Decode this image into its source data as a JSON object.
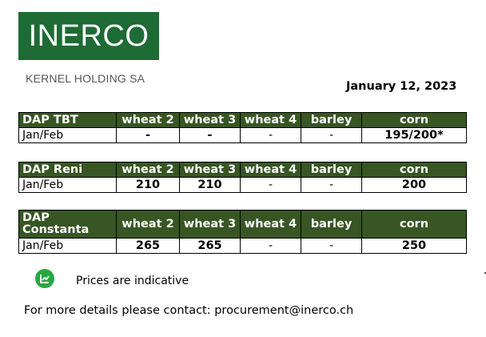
{
  "header": {
    "logo_text": "INERCO",
    "company_name": "KERNEL HOLDING SA",
    "date": "January 12, 2023"
  },
  "columns": [
    "wheat 2",
    "wheat 3",
    "wheat 4",
    "barley",
    "corn"
  ],
  "tables": [
    {
      "location": "DAP TBT",
      "period": "Jan/Feb",
      "values": [
        "-",
        "-",
        "-",
        "-",
        "195/200*"
      ]
    },
    {
      "location": "DAP Reni",
      "period": "Jan/Feb",
      "values": [
        "210",
        "210",
        "-",
        "-",
        "200"
      ]
    },
    {
      "location": "DAP Constanta",
      "period": "Jan/Feb",
      "values": [
        "265",
        "265",
        "-",
        "-",
        "250"
      ]
    }
  ],
  "note": {
    "icon": "trend-chart-icon",
    "icon_color": "#27a844",
    "text": "Prices are indicative"
  },
  "contact": "For more details please contact: procurement@inerco.ch",
  "colors": {
    "brand_green": "#1e6b35",
    "header_green": "#375623"
  }
}
